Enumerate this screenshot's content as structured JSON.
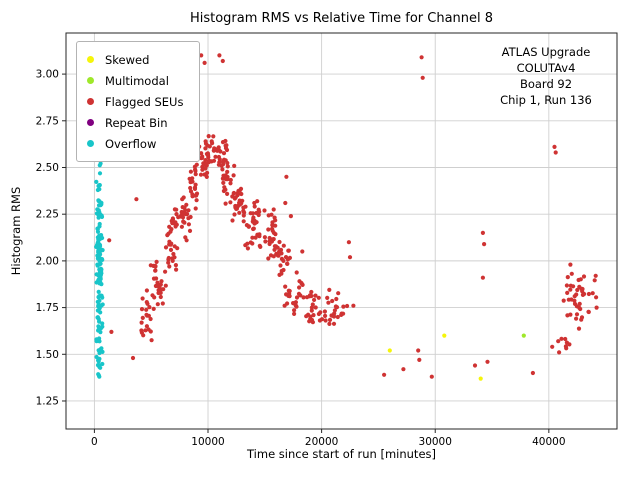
{
  "chart_data": {
    "type": "scatter",
    "title": "Histogram RMS vs Relative Time for Channel 8",
    "xlabel": "Time since start of run [minutes]",
    "ylabel": "Histogram RMS",
    "xlim": [
      -2500,
      46000
    ],
    "ylim": [
      1.1,
      3.22
    ],
    "xticks": [
      0,
      10000,
      20000,
      30000,
      40000
    ],
    "yticks": [
      1.25,
      1.5,
      1.75,
      2.0,
      2.25,
      2.5,
      2.75,
      3.0
    ],
    "grid": true,
    "legend_position": "upper-left",
    "annotation_lines": [
      "ATLAS Upgrade",
      "COLUTAv4",
      "Board 92",
      "Chip 1, Run 136"
    ],
    "series": [
      {
        "name": "Skewed",
        "color": "#f5f50a",
        "points": [
          [
            26000,
            1.52
          ],
          [
            30800,
            1.6
          ],
          [
            34000,
            1.37
          ]
        ],
        "clusters": []
      },
      {
        "name": "Multimodal",
        "color": "#9fe82a",
        "points": [
          [
            37800,
            1.6
          ]
        ],
        "clusters": []
      },
      {
        "name": "Flagged SEUs",
        "color": "#cf3333",
        "points": [
          [
            1300,
            2.11
          ],
          [
            1500,
            1.62
          ],
          [
            3400,
            1.48
          ],
          [
            3700,
            2.33
          ],
          [
            9400,
            3.1
          ],
          [
            9700,
            3.06
          ],
          [
            11000,
            3.1
          ],
          [
            11300,
            3.07
          ],
          [
            16900,
            2.45
          ],
          [
            16800,
            2.31
          ],
          [
            17300,
            2.24
          ],
          [
            18300,
            2.05
          ],
          [
            22400,
            2.1
          ],
          [
            22500,
            2.02
          ],
          [
            22800,
            1.76
          ],
          [
            25500,
            1.39
          ],
          [
            27200,
            1.42
          ],
          [
            28500,
            1.52
          ],
          [
            28600,
            1.47
          ],
          [
            28800,
            3.09
          ],
          [
            28900,
            2.98
          ],
          [
            29700,
            1.38
          ],
          [
            33500,
            1.44
          ],
          [
            34200,
            2.15
          ],
          [
            34300,
            2.09
          ],
          [
            34200,
            1.91
          ],
          [
            34600,
            1.46
          ],
          [
            38600,
            1.4
          ],
          [
            40300,
            1.54
          ],
          [
            40500,
            2.61
          ],
          [
            40600,
            2.58
          ],
          [
            40900,
            1.51
          ],
          [
            41900,
            1.98
          ],
          [
            44200,
            1.75
          ]
        ],
        "clusters": [
          {
            "x": [
              3800,
              5200
            ],
            "y": [
              1.55,
              1.88
            ],
            "n": 22,
            "seed": 1
          },
          {
            "x": [
              4700,
              6500
            ],
            "y": [
              1.72,
              2.02
            ],
            "n": 30,
            "seed": 2
          },
          {
            "x": [
              5900,
              7600
            ],
            "y": [
              1.92,
              2.28
            ],
            "n": 32,
            "seed": 3
          },
          {
            "x": [
              7000,
              8600
            ],
            "y": [
              2.08,
              2.38
            ],
            "n": 28,
            "seed": 4
          },
          {
            "x": [
              8300,
              9300
            ],
            "y": [
              2.2,
              2.58
            ],
            "n": 22,
            "seed": 5
          },
          {
            "x": [
              9000,
              10600
            ],
            "y": [
              2.42,
              2.72
            ],
            "n": 38,
            "seed": 6
          },
          {
            "x": [
              10300,
              11900
            ],
            "y": [
              2.48,
              2.66
            ],
            "n": 26,
            "seed": 7
          },
          {
            "x": [
              11000,
              12400
            ],
            "y": [
              2.28,
              2.6
            ],
            "n": 22,
            "seed": 8
          },
          {
            "x": [
              11600,
              13600
            ],
            "y": [
              2.18,
              2.42
            ],
            "n": 30,
            "seed": 9
          },
          {
            "x": [
              12900,
              15100
            ],
            "y": [
              2.05,
              2.35
            ],
            "n": 36,
            "seed": 10
          },
          {
            "x": [
              14600,
              16600
            ],
            "y": [
              1.98,
              2.3
            ],
            "n": 30,
            "seed": 11
          },
          {
            "x": [
              16000,
              17600
            ],
            "y": [
              1.85,
              2.18
            ],
            "n": 22,
            "seed": 12
          },
          {
            "x": [
              16700,
              18600
            ],
            "y": [
              1.7,
              1.97
            ],
            "n": 26,
            "seed": 13
          },
          {
            "x": [
              18000,
              20600
            ],
            "y": [
              1.63,
              1.87
            ],
            "n": 28,
            "seed": 14
          },
          {
            "x": [
              20200,
              22600
            ],
            "y": [
              1.6,
              1.85
            ],
            "n": 22,
            "seed": 15
          },
          {
            "x": [
              41000,
              44300
            ],
            "y": [
              1.6,
              1.97
            ],
            "n": 42,
            "seed": 16
          },
          {
            "x": [
              40700,
              42600
            ],
            "y": [
              1.48,
              1.63
            ],
            "n": 7,
            "seed": 17
          }
        ]
      },
      {
        "name": "Repeat Bin",
        "color": "#800080",
        "points": [],
        "clusters": []
      },
      {
        "name": "Overflow",
        "color": "#18c5c9",
        "points": [
          [
            300,
            3.1
          ],
          [
            600,
            3.05
          ]
        ],
        "clusters": [
          {
            "x": [
              120,
              750
            ],
            "y": [
              1.22,
              2.72
            ],
            "n": 150,
            "seed": 18
          },
          {
            "x": [
              150,
              700
            ],
            "y": [
              2.72,
              3.12
            ],
            "n": 10,
            "seed": 19
          }
        ]
      }
    ]
  }
}
